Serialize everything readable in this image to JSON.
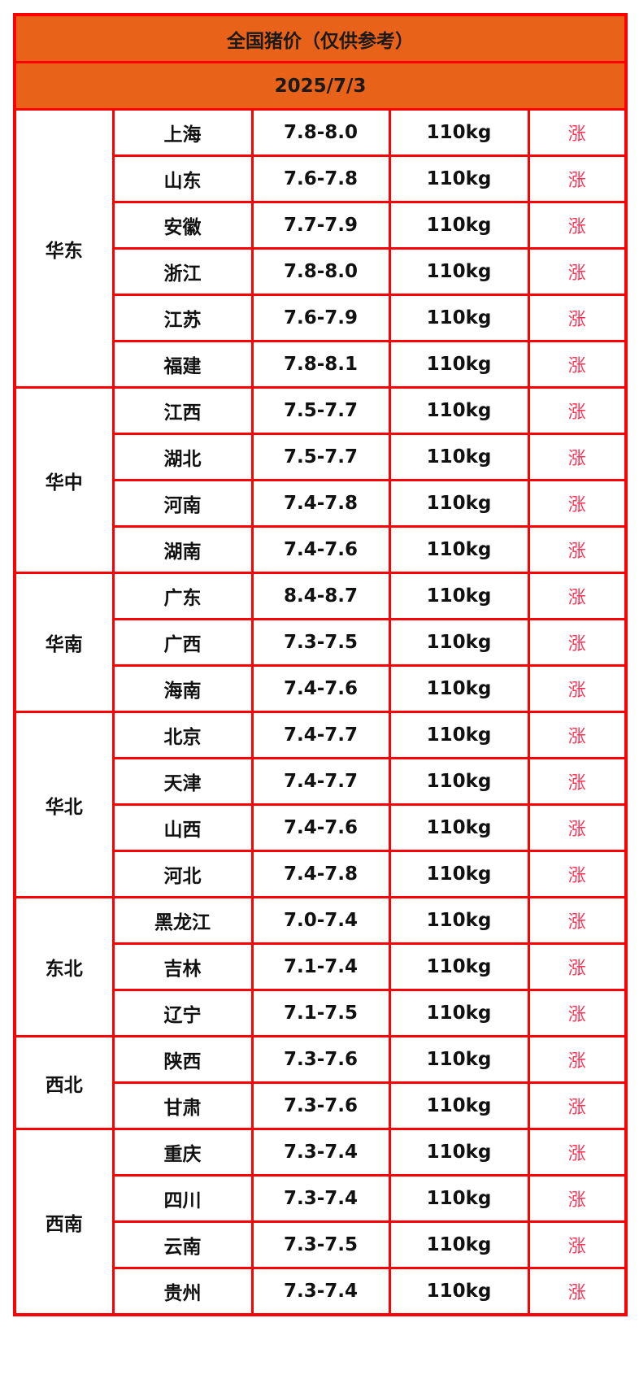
{
  "title": "全国猪价（仅供参考）",
  "date": "2025/7/3",
  "colors": {
    "header_bg": "#e8621a",
    "border": "#ff0000",
    "rise": "#ff3355"
  },
  "regions": [
    {
      "name": "华东",
      "rows": [
        {
          "province": "上海",
          "price": "7.8-8.0",
          "weight": "110kg",
          "trend": "涨"
        },
        {
          "province": "山东",
          "price": "7.6-7.8",
          "weight": "110kg",
          "trend": "涨"
        },
        {
          "province": "安徽",
          "price": "7.7-7.9",
          "weight": "110kg",
          "trend": "涨"
        },
        {
          "province": "浙江",
          "price": "7.8-8.0",
          "weight": "110kg",
          "trend": "涨"
        },
        {
          "province": "江苏",
          "price": "7.6-7.9",
          "weight": "110kg",
          "trend": "涨"
        },
        {
          "province": "福建",
          "price": "7.8-8.1",
          "weight": "110kg",
          "trend": "涨"
        }
      ]
    },
    {
      "name": "华中",
      "rows": [
        {
          "province": "江西",
          "price": "7.5-7.7",
          "weight": "110kg",
          "trend": "涨"
        },
        {
          "province": "湖北",
          "price": "7.5-7.7",
          "weight": "110kg",
          "trend": "涨"
        },
        {
          "province": "河南",
          "price": "7.4-7.8",
          "weight": "110kg",
          "trend": "涨"
        },
        {
          "province": "湖南",
          "price": "7.4-7.6",
          "weight": "110kg",
          "trend": "涨"
        }
      ]
    },
    {
      "name": "华南",
      "rows": [
        {
          "province": "广东",
          "price": "8.4-8.7",
          "weight": "110kg",
          "trend": "涨"
        },
        {
          "province": "广西",
          "price": "7.3-7.5",
          "weight": "110kg",
          "trend": "涨"
        },
        {
          "province": "海南",
          "price": "7.4-7.6",
          "weight": "110kg",
          "trend": "涨"
        }
      ]
    },
    {
      "name": "华北",
      "rows": [
        {
          "province": "北京",
          "price": "7.4-7.7",
          "weight": "110kg",
          "trend": "涨"
        },
        {
          "province": "天津",
          "price": "7.4-7.7",
          "weight": "110kg",
          "trend": "涨"
        },
        {
          "province": "山西",
          "price": "7.4-7.6",
          "weight": "110kg",
          "trend": "涨"
        },
        {
          "province": "河北",
          "price": "7.4-7.8",
          "weight": "110kg",
          "trend": "涨"
        }
      ]
    },
    {
      "name": "东北",
      "rows": [
        {
          "province": "黑龙江",
          "price": "7.0-7.4",
          "weight": "110kg",
          "trend": "涨"
        },
        {
          "province": "吉林",
          "price": "7.1-7.4",
          "weight": "110kg",
          "trend": "涨"
        },
        {
          "province": "辽宁",
          "price": "7.1-7.5",
          "weight": "110kg",
          "trend": "涨"
        }
      ]
    },
    {
      "name": "西北",
      "rows": [
        {
          "province": "陕西",
          "price": "7.3-7.6",
          "weight": "110kg",
          "trend": "涨"
        },
        {
          "province": "甘肃",
          "price": "7.3-7.6",
          "weight": "110kg",
          "trend": "涨"
        }
      ]
    },
    {
      "name": "西南",
      "rows": [
        {
          "province": "重庆",
          "price": "7.3-7.4",
          "weight": "110kg",
          "trend": "涨"
        },
        {
          "province": "四川",
          "price": "7.3-7.4",
          "weight": "110kg",
          "trend": "涨"
        },
        {
          "province": "云南",
          "price": "7.3-7.5",
          "weight": "110kg",
          "trend": "涨"
        },
        {
          "province": "贵州",
          "price": "7.3-7.4",
          "weight": "110kg",
          "trend": "涨"
        }
      ]
    }
  ]
}
